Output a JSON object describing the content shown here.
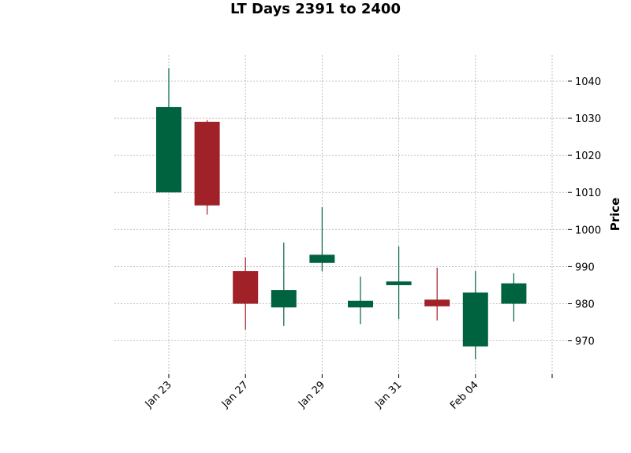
{
  "chart_data": {
    "type": "candlestick",
    "title": "LT Days 2391 to 2400",
    "ylabel": "Price",
    "ylim": [
      961,
      1047
    ],
    "yticks": [
      970,
      980,
      990,
      1000,
      1010,
      1020,
      1030,
      1040
    ],
    "xticks": [
      {
        "index": 0,
        "label": "Jan 23"
      },
      {
        "index": 2,
        "label": "Jan 27"
      },
      {
        "index": 4,
        "label": "Jan 29"
      },
      {
        "index": 6,
        "label": "Jan 31"
      },
      {
        "index": 8,
        "label": "Feb 04"
      },
      {
        "index": 10,
        "label": ""
      }
    ],
    "grid": true,
    "up_color": "#006340",
    "down_color": "#a02128",
    "candles": [
      {
        "open": 1010,
        "high": 1043.5,
        "low": 1010,
        "close": 1033
      },
      {
        "open": 1029,
        "high": 1029.5,
        "low": 1004,
        "close": 1006.5
      },
      {
        "open": 988.8,
        "high": 992.5,
        "low": 973,
        "close": 980
      },
      {
        "open": 979,
        "high": 996.5,
        "low": 974,
        "close": 983.7
      },
      {
        "open": 991,
        "high": 1006,
        "low": 988.7,
        "close": 993.2
      },
      {
        "open": 979,
        "high": 987.3,
        "low": 974.5,
        "close": 980.8
      },
      {
        "open": 985,
        "high": 995.5,
        "low": 975.8,
        "close": 986
      },
      {
        "open": 981.1,
        "high": 989.7,
        "low": 975.5,
        "close": 979.3
      },
      {
        "open": 968.5,
        "high": 988.8,
        "low": 965,
        "close": 983
      },
      {
        "open": 980,
        "high": 988.2,
        "low": 975.2,
        "close": 985.5
      }
    ]
  }
}
